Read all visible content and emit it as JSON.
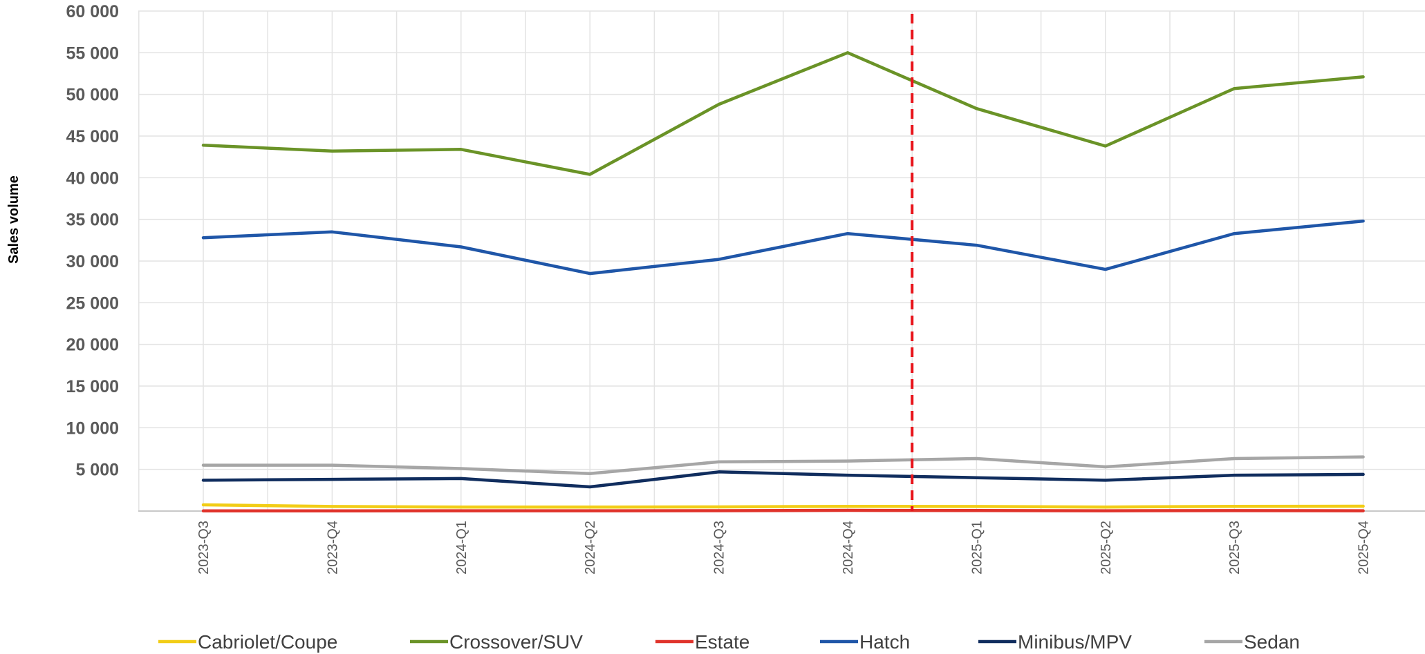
{
  "chart_data": {
    "type": "line",
    "ylabel": "Sales volume",
    "xlabel": "",
    "ylim": [
      0,
      60000
    ],
    "yticks": [
      5000,
      10000,
      15000,
      20000,
      25000,
      30000,
      35000,
      40000,
      45000,
      50000,
      55000,
      60000
    ],
    "ytick_labels": [
      "5 000",
      "10 000",
      "15 000",
      "20 000",
      "25 000",
      "30 000",
      "35 000",
      "40 000",
      "45 000",
      "50 000",
      "55 000",
      "60 000"
    ],
    "categories": [
      "2023-Q3",
      "2023-Q4",
      "2024-Q1",
      "2024-Q2",
      "2024-Q3",
      "2024-Q4",
      "2025-Q1",
      "2025-Q2",
      "2025-Q3",
      "2025-Q4"
    ],
    "grid": true,
    "legend_position": "bottom",
    "vertical_marker": {
      "between": [
        "2024-Q4",
        "2025-Q1"
      ],
      "color": "#e8141b",
      "style": "dashed"
    },
    "series": [
      {
        "name": "Cabriolet/Coupe",
        "color": "#f2cd16",
        "values": [
          750,
          550,
          480,
          470,
          500,
          560,
          550,
          480,
          560,
          580
        ]
      },
      {
        "name": "Crossover/SUV",
        "color": "#6a9327",
        "values": [
          43900,
          43200,
          43400,
          40400,
          48800,
          55000,
          48300,
          43800,
          50700,
          52100
        ]
      },
      {
        "name": "Estate",
        "color": "#e0332b",
        "values": [
          20,
          20,
          30,
          30,
          40,
          80,
          60,
          30,
          50,
          30
        ]
      },
      {
        "name": "Hatch",
        "color": "#1f56a8",
        "values": [
          32800,
          33500,
          31700,
          28500,
          30200,
          33300,
          31900,
          29000,
          33300,
          34800
        ]
      },
      {
        "name": "Minibus/MPV",
        "color": "#102d5e",
        "values": [
          3700,
          3800,
          3900,
          2900,
          4700,
          4300,
          4000,
          3700,
          4300,
          4400
        ]
      },
      {
        "name": "Sedan",
        "color": "#a6a6a6",
        "values": [
          5500,
          5500,
          5100,
          4500,
          5900,
          6000,
          6300,
          5300,
          6300,
          6500
        ]
      }
    ]
  }
}
